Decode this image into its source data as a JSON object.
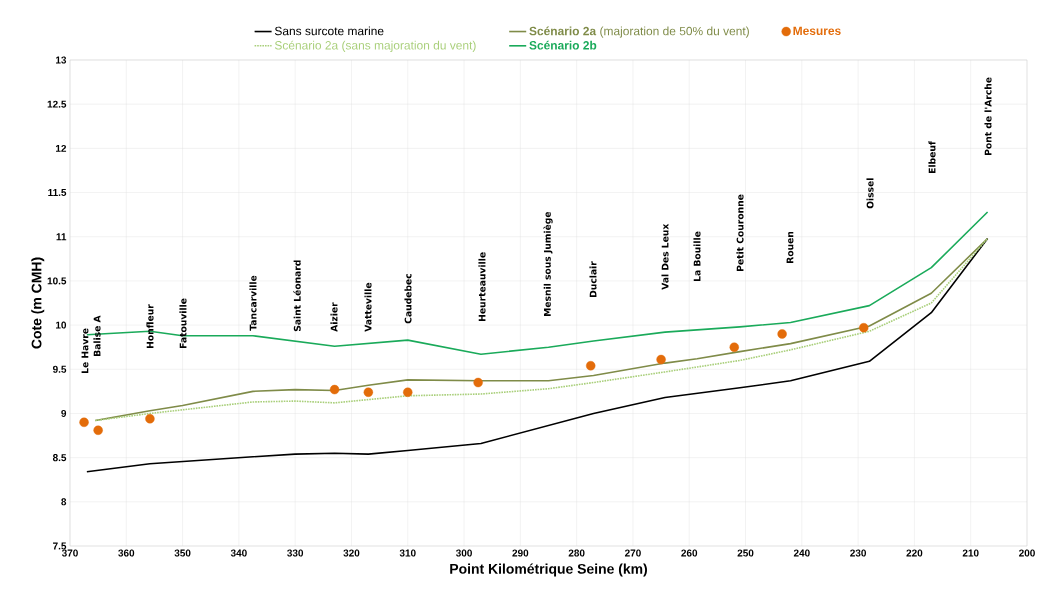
{
  "chart_data": {
    "type": "line",
    "xlabel": "Point Kilométrique Seine (km)",
    "ylabel": "Cote (m CMH)",
    "xlim": [
      370,
      200
    ],
    "xticks": [
      370,
      360,
      350,
      340,
      330,
      320,
      310,
      300,
      290,
      280,
      270,
      260,
      250,
      240,
      230,
      220,
      210,
      200
    ],
    "ylim": [
      7.5,
      13
    ],
    "yticks": [
      7.5,
      8,
      8.5,
      9,
      9.5,
      10,
      10.5,
      11,
      11.5,
      12,
      12.5,
      13
    ],
    "grid": true,
    "legend": "top",
    "series": [
      {
        "name": "Sans surcote marine",
        "color": "#000000",
        "line_style": "solid",
        "x": [
          367,
          355.8,
          337.5,
          330,
          323,
          317,
          310,
          297,
          277,
          264.3,
          251,
          242,
          228,
          217,
          207
        ],
        "values": [
          8.34,
          8.43,
          8.51,
          8.54,
          8.55,
          8.54,
          8.58,
          8.66,
          9.0,
          9.18,
          9.29,
          9.37,
          9.59,
          10.14,
          10.98
        ]
      },
      {
        "name": "**Scénario 2a** (majoration de 50% du vent)",
        "color": "#7f8b48",
        "line_style": "solid",
        "x": [
          365.5,
          355.8,
          350,
          337.5,
          330,
          323,
          317,
          310,
          297,
          285,
          277,
          264.3,
          258.6,
          251,
          242,
          228,
          217,
          207
        ],
        "values": [
          8.92,
          9.03,
          9.09,
          9.25,
          9.27,
          9.26,
          9.32,
          9.38,
          9.37,
          9.37,
          9.43,
          9.57,
          9.62,
          9.7,
          9.79,
          9.99,
          10.36,
          10.98
        ]
      },
      {
        "name": "Scénario 2a (sans majoration du vent)",
        "color": "#a9cf7a",
        "line_style": "dotted",
        "x": [
          365.5,
          355.8,
          337.5,
          330,
          323,
          310,
          297,
          285,
          277,
          264.3,
          251,
          242,
          228,
          217,
          207
        ],
        "values": [
          8.92,
          9.0,
          9.13,
          9.14,
          9.12,
          9.2,
          9.22,
          9.28,
          9.35,
          9.47,
          9.6,
          9.72,
          9.93,
          10.25,
          10.98
        ]
      },
      {
        "name": "**Scénario 2b**",
        "color": "#1aaa5a",
        "line_style": "solid",
        "x": [
          367,
          355.8,
          350,
          337.5,
          323,
          310,
          297,
          285,
          277,
          264.3,
          251,
          242,
          228,
          217,
          207
        ],
        "values": [
          9.89,
          9.93,
          9.88,
          9.88,
          9.76,
          9.83,
          9.67,
          9.75,
          9.82,
          9.92,
          9.98,
          10.03,
          10.22,
          10.65,
          11.28
        ]
      },
      {
        "name": "**Mesures**",
        "type": "scatter",
        "marker": "circle",
        "color": "#e36c0a",
        "x": [
          367.5,
          365,
          355.8,
          323,
          317,
          310,
          297.5,
          277.5,
          265,
          252,
          243.5,
          229
        ],
        "values": [
          8.9,
          8.81,
          8.94,
          9.27,
          9.24,
          9.24,
          9.35,
          9.54,
          9.61,
          9.75,
          9.9,
          9.97
        ]
      }
    ],
    "annotations": [
      "Le Havre",
      "Balise A",
      "Honfleur",
      "Fatouville",
      "Tancarville",
      "Saint Léonard",
      "Aizier",
      "Vatteville",
      "Caudebec",
      "Heurteauville",
      "Mesnil sous Jumiège",
      "Duclair",
      "Val Des Leux",
      "La Bouille",
      "Petit Couronne",
      "Rouen",
      "Oissel",
      "Elbeuf",
      "Pont de l'Arche"
    ]
  }
}
